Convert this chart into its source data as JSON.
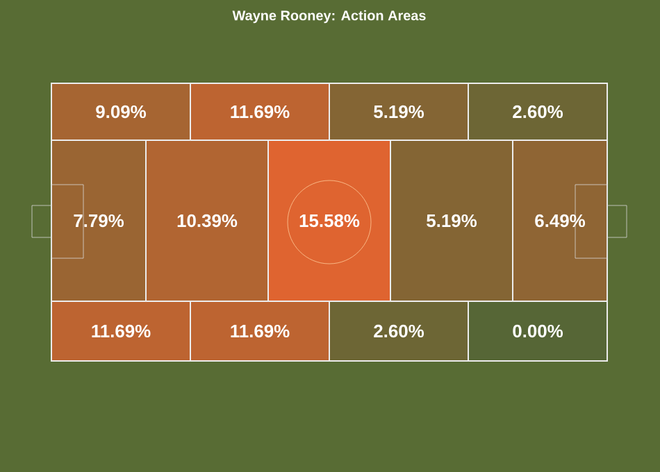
{
  "chart_data": {
    "type": "other",
    "title": "Wayne Rooney: Action Areas",
    "values": [
      9.09,
      11.69,
      5.19,
      2.6,
      7.79,
      10.39,
      15.58,
      5.19,
      6.49,
      11.69,
      11.69,
      2.6,
      0.0
    ],
    "value_labels": [
      "9.09%",
      "11.69%",
      "5.19%",
      "2.60%",
      "7.79%",
      "10.39%",
      "15.58%",
      "5.19%",
      "6.49%",
      "11.69%",
      "11.69%",
      "2.60%",
      "0.00%"
    ]
  }
}
